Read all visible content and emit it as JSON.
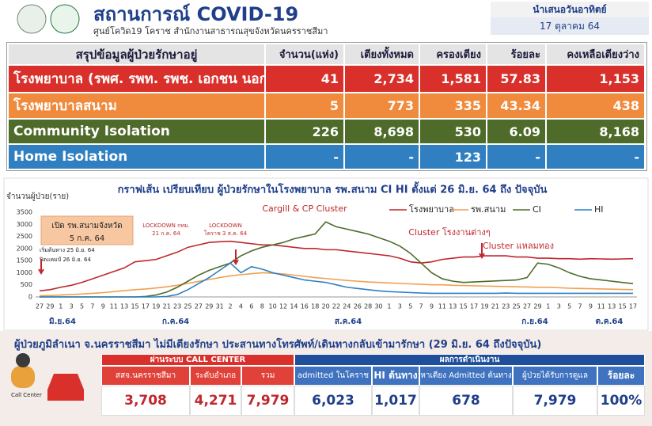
{
  "header": {
    "title": "สถานการณ์ COVID-19",
    "subtitle": "ศูนย์โควิด19 โคราช สำนักงานสาธารณสุขจังหวัดนครราชสีมา",
    "presented": "นำเสนอวันอาทิตย์",
    "date": "17 ตุลาคม 64"
  },
  "table": {
    "columns": [
      "สรุปข้อมูลผู้ป่วยรักษาอยู่",
      "จำนวน(แห่ง)",
      "เตียงทั้งหมด",
      "ครองเตียง",
      "ร้อยละ",
      "คงเหลือเตียงว่าง"
    ],
    "rows": [
      [
        "โรงพยาบาล (รพศ. รพท. รพช. เอกชน นอกสังกัด)",
        "41",
        "2,734",
        "1,581",
        "57.83",
        "1,153"
      ],
      [
        "โรงพยาบาลสนาม",
        "5",
        "773",
        "335",
        "43.34",
        "438"
      ],
      [
        "Community Isolation",
        "226",
        "8,698",
        "530",
        "6.09",
        "8,168"
      ],
      [
        "Home Isolation",
        "-",
        "-",
        "123",
        "-",
        "-"
      ]
    ]
  },
  "chart_data": {
    "type": "line",
    "title": "กราฟเส้น เปรียบเทียบ ผู้ป่วยรักษาในโรงพยาบาล รพ.สนาม CI HI ตั้งแต่ 26 มิ.ย. 64 ถึง ปัจจุบัน",
    "y_label": "จำนวนผู้ป่วย(ราย)",
    "categories": [
      "27",
      "29",
      "1",
      "3",
      "5",
      "7",
      "9",
      "11",
      "13",
      "15",
      "17",
      "19",
      "21",
      "23",
      "25",
      "27",
      "29",
      "31",
      "2",
      "4",
      "6",
      "8",
      "10",
      "12",
      "14",
      "16",
      "18",
      "20",
      "22",
      "24",
      "26",
      "28",
      "30",
      "1",
      "3",
      "5",
      "7",
      "9",
      "11",
      "13",
      "15",
      "17",
      "19",
      "21",
      "23",
      "25",
      "27",
      "29",
      "1",
      "3",
      "5",
      "7",
      "9",
      "11",
      "13",
      "15",
      "17"
    ],
    "months": [
      "มิ.ย.64",
      "ก.ค.64",
      "ส.ค.64",
      "ก.ย.64",
      "ต.ค.64"
    ],
    "ylim": [
      0,
      3500
    ],
    "yticks": [
      0,
      500,
      1000,
      1500,
      2000,
      2500,
      3000,
      3500
    ],
    "grid": false,
    "series": [
      {
        "name": "โรงพยาบาล",
        "color": "#c0262d",
        "values": [
          250,
          300,
          400,
          480,
          600,
          750,
          900,
          1050,
          1200,
          1450,
          1500,
          1550,
          1700,
          1850,
          2050,
          2150,
          2250,
          2280,
          2300,
          2250,
          2200,
          2150,
          2150,
          2100,
          2050,
          2000,
          2000,
          1950,
          1950,
          1900,
          1850,
          1800,
          1750,
          1700,
          1600,
          1450,
          1400,
          1450,
          1550,
          1600,
          1650,
          1650,
          1700,
          1700,
          1700,
          1650,
          1650,
          1600,
          1600,
          1580,
          1580,
          1560,
          1580,
          1570,
          1560,
          1570,
          1580
        ]
      },
      {
        "name": "รพ.สนาม",
        "color": "#f0a050",
        "values": [
          50,
          60,
          80,
          100,
          120,
          150,
          180,
          220,
          260,
          300,
          330,
          370,
          420,
          480,
          560,
          640,
          720,
          800,
          870,
          920,
          960,
          1000,
          980,
          950,
          900,
          850,
          800,
          760,
          720,
          680,
          650,
          620,
          600,
          580,
          560,
          540,
          520,
          500,
          500,
          480,
          470,
          460,
          450,
          440,
          430,
          420,
          410,
          400,
          400,
          380,
          360,
          350,
          340,
          330,
          320,
          310,
          300
        ]
      },
      {
        "name": "CI",
        "color": "#4e6b2a",
        "values": [
          0,
          0,
          0,
          0,
          0,
          0,
          0,
          0,
          0,
          0,
          20,
          80,
          200,
          400,
          650,
          900,
          1100,
          1250,
          1400,
          1700,
          1900,
          2050,
          2150,
          2250,
          2400,
          2500,
          2600,
          3100,
          2900,
          2800,
          2700,
          2600,
          2450,
          2300,
          2100,
          1800,
          1400,
          1000,
          750,
          650,
          600,
          620,
          640,
          660,
          680,
          700,
          800,
          1400,
          1350,
          1200,
          1000,
          850,
          750,
          700,
          650,
          600,
          550
        ]
      },
      {
        "name": "HI",
        "color": "#2f7fc1",
        "values": [
          0,
          0,
          0,
          0,
          0,
          0,
          0,
          0,
          0,
          0,
          0,
          0,
          20,
          100,
          300,
          550,
          800,
          1100,
          1400,
          1000,
          1250,
          1150,
          1000,
          900,
          800,
          700,
          650,
          600,
          500,
          400,
          350,
          300,
          250,
          220,
          200,
          180,
          160,
          150,
          150,
          150,
          150,
          150,
          150,
          150,
          160,
          150,
          150,
          150,
          150,
          150,
          150,
          150,
          150,
          150,
          150,
          150,
          150
        ]
      }
    ],
    "annotations": [
      [
        "เปิด รพ.สนามจังหวัด",
        "5 ก.ค. 64"
      ],
      [
        "เริ่มต้นทาง 25 มิ.ย. 64"
      ],
      [
        "ปิดแคมป์ 26 มิ.ย. 64"
      ],
      [
        "LOCKDOWN กทม.",
        "21 ก.ค. 64"
      ],
      [
        "LOCKDOWN",
        "โคราช 3 ส.ค. 64"
      ],
      [
        "Cargill  & CP Cluster"
      ],
      [
        "Cluster  โรงงานต่างๆ"
      ],
      [
        "Cluster แหลมทอง"
      ]
    ]
  },
  "bottom": {
    "title": "ผู้ป่วยภูมิลำเนา จ.นครราชสีมา ไม่มีเตียงรักษา ประสานทางโทรศัพท์/เดินทางกลับเข้ามารักษา (29 มิ.ย. 64 ถึงปัจจุบัน)",
    "icon_label": "Call Center",
    "groups": [
      "ผ่านระบบ CALL CENTER",
      "ผลการดำเนินงาน"
    ],
    "columns": [
      "สสจ.นครราชสีมา",
      "ระดับอำเภอ",
      "รวม",
      "admitted ในโคราช",
      "HI ต้นทาง",
      "หาเตียง Admitted  ต้นทาง",
      "ผู้ป่วยได้รับการดูแล",
      "ร้อยละ"
    ],
    "values": [
      "3,708",
      "4,271",
      "7,979",
      "6,023",
      "1,017",
      "678",
      "7,979",
      "100%"
    ]
  }
}
